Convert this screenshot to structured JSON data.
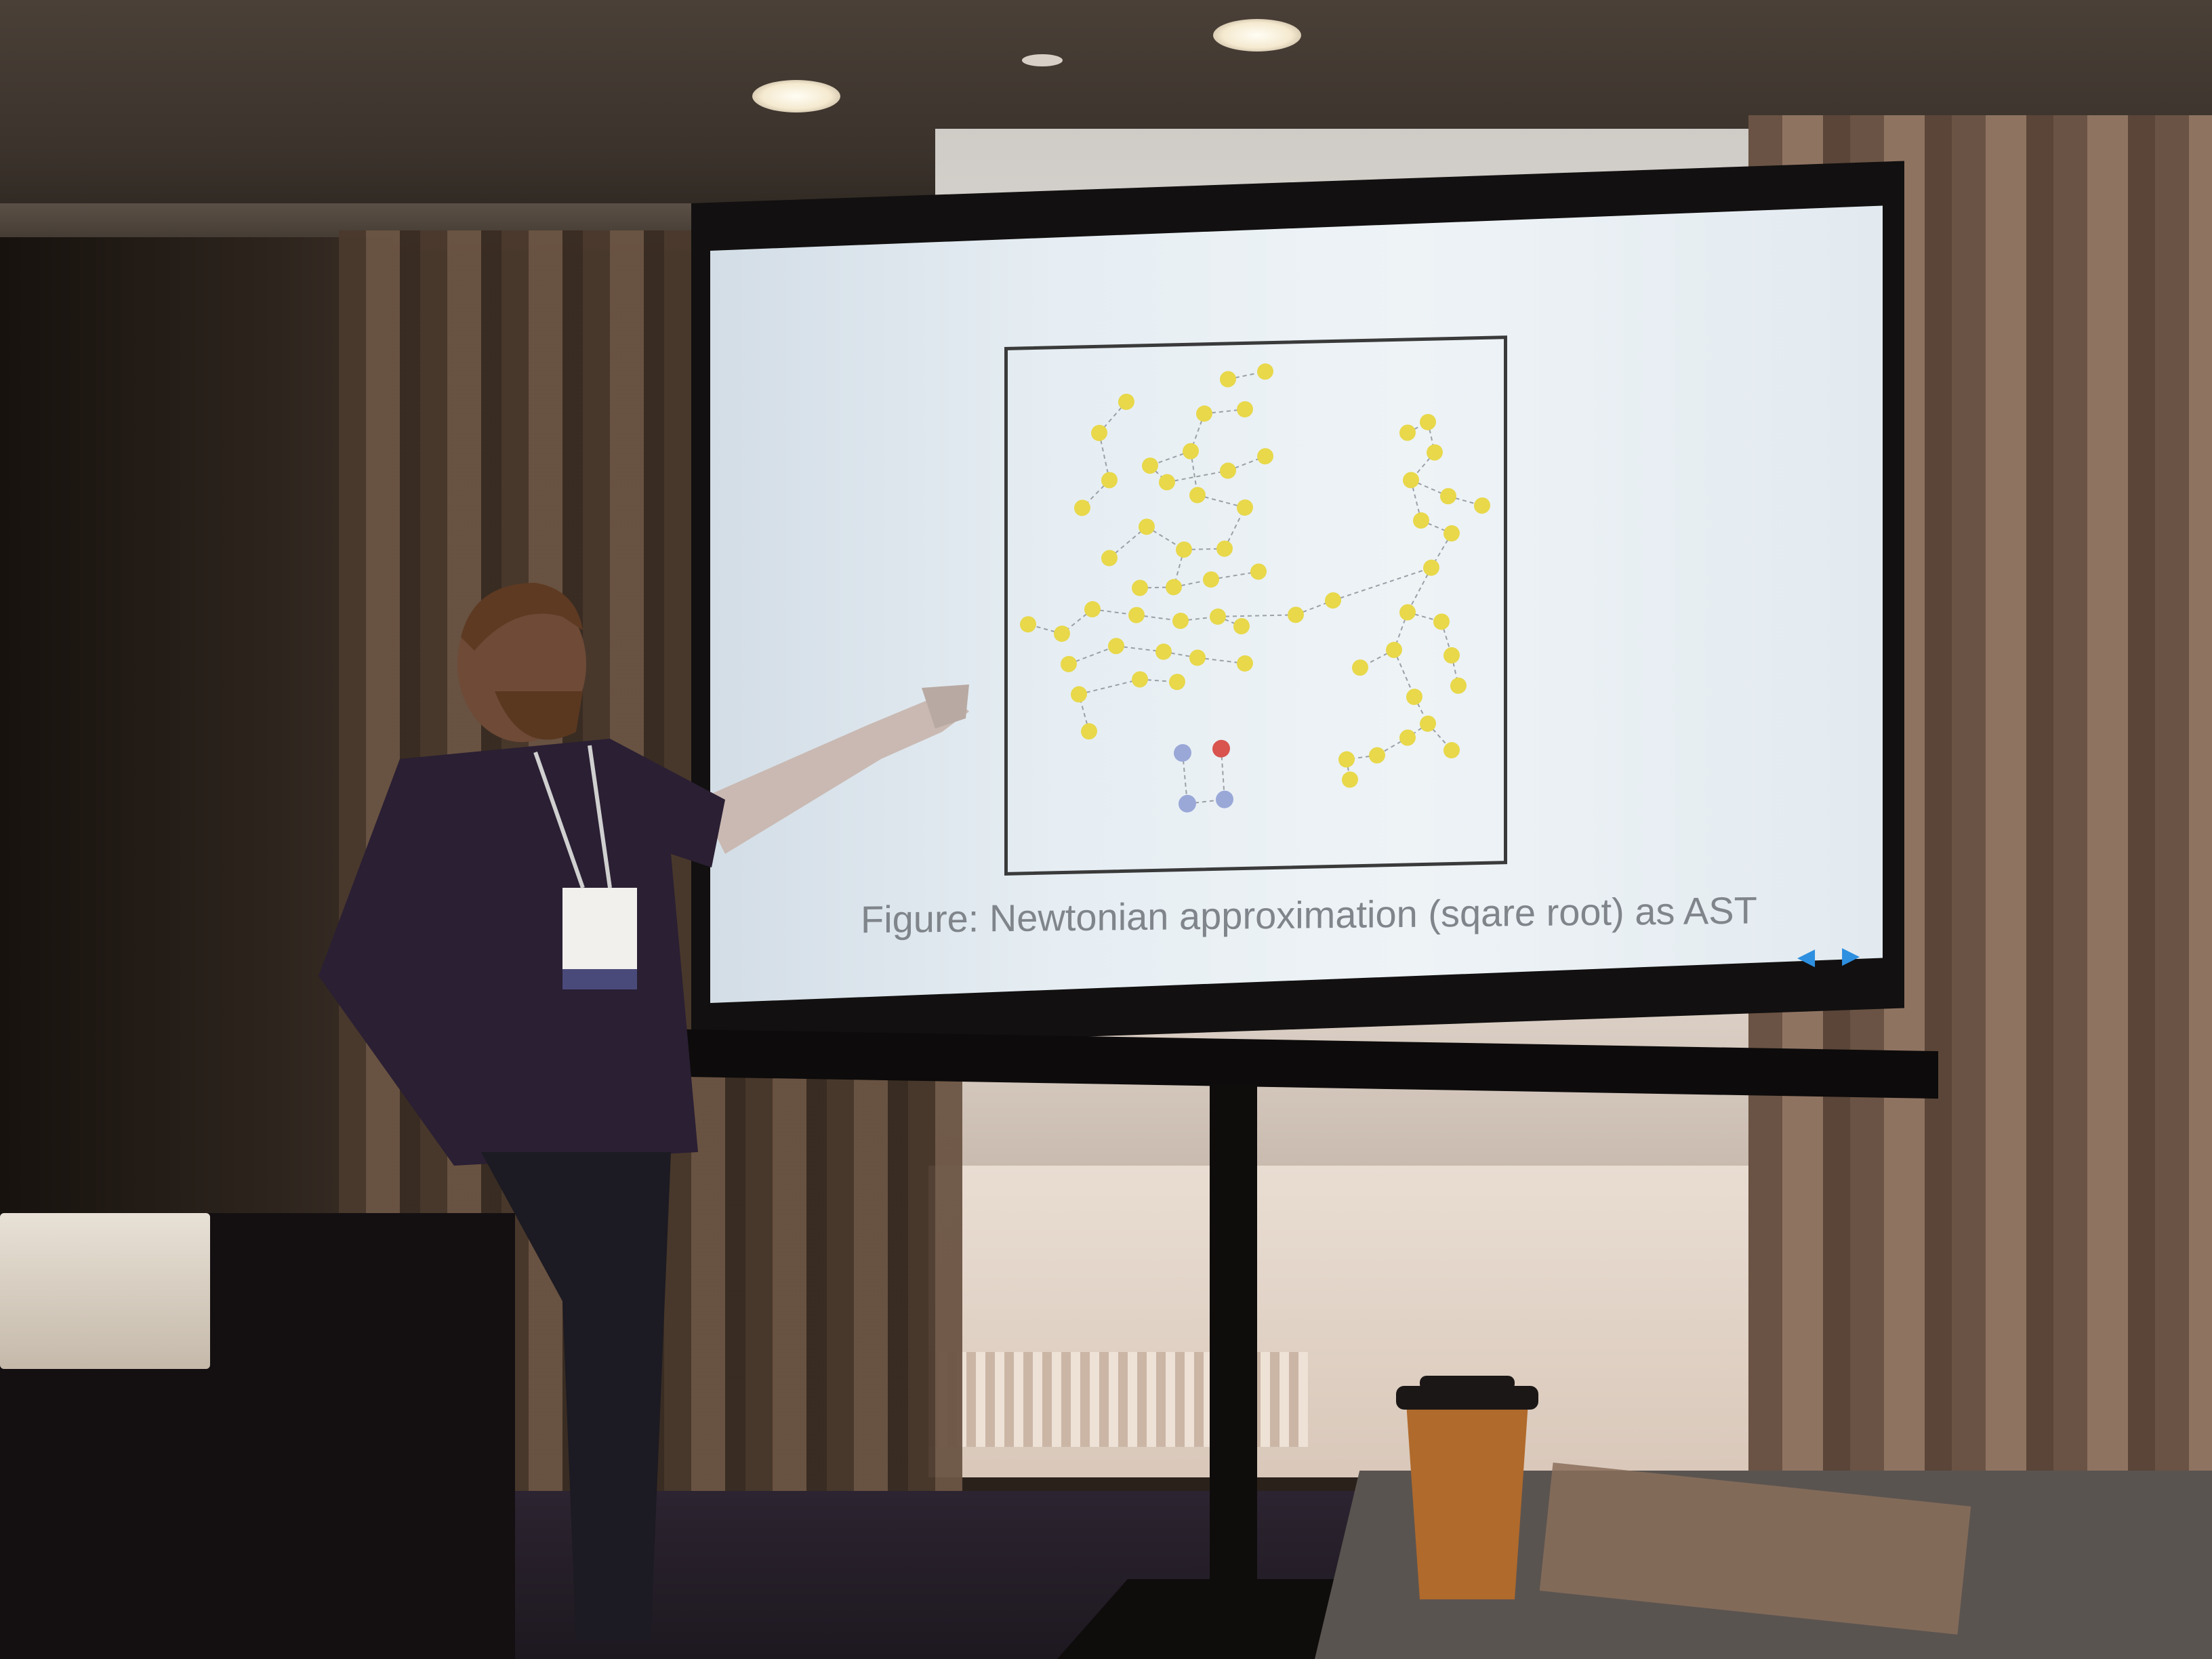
{
  "scene": {
    "description_type": "photo",
    "slide": {
      "caption": "Figure: Newtonian approximation (sqare root) as AST",
      "prev_icon": "triangle-left-icon",
      "next_icon": "triangle-right-icon",
      "accent_color": "#2d8fe0",
      "node_color": "#e8d84a",
      "highlight_node_color": "#d9534f",
      "secondary_node_color": "#9aa8d8"
    }
  }
}
